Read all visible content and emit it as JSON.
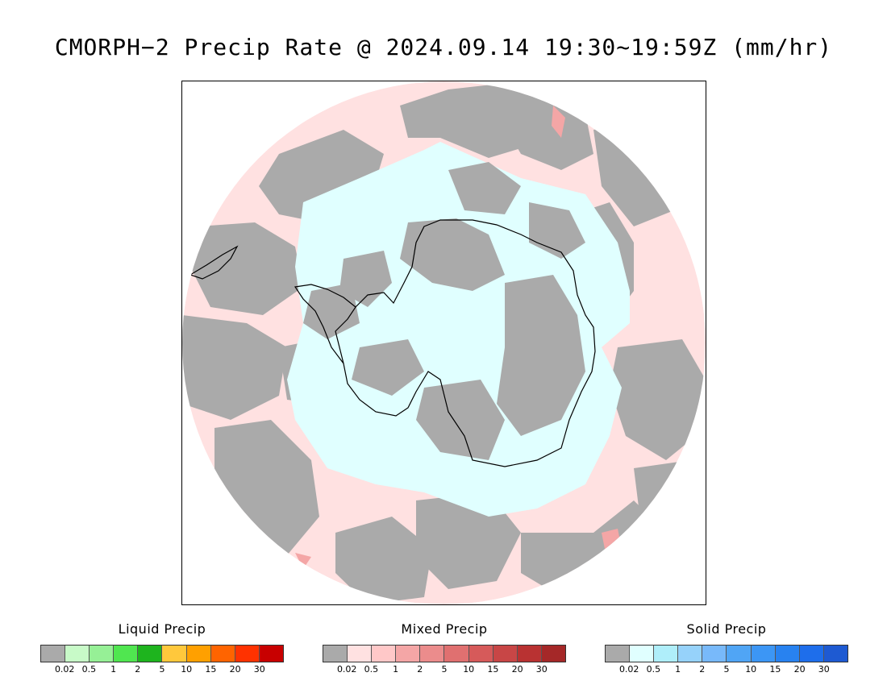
{
  "title": "CMORPH−2 Precip Rate @ 2024.09.14 19:30~19:59Z (mm/hr)",
  "map": {
    "projection": "south-polar-stereographic",
    "colors": {
      "no_precip": "#ffffff",
      "gray_trace": "#aaaaaa",
      "mixed_light": "#ffe1e1",
      "mixed_mid": "#f4a6a6",
      "mixed_strong": "#e07070",
      "solid_light": "#e0ffff",
      "coastline": "#000000"
    }
  },
  "legends": [
    {
      "title": "Liquid Precip",
      "colors": [
        "#aaaaaa",
        "#c8fac8",
        "#96f096",
        "#50e650",
        "#1eb41e",
        "#ffc83c",
        "#ffa000",
        "#ff6400",
        "#ff3200",
        "#c80000"
      ],
      "ticks": [
        "0.02",
        "0.5",
        "1",
        "2",
        "5",
        "10",
        "15",
        "20",
        "30"
      ]
    },
    {
      "title": "Mixed Precip",
      "colors": [
        "#aaaaaa",
        "#ffe1e1",
        "#ffc8c8",
        "#f4a6a6",
        "#eb8c8c",
        "#e07070",
        "#d65a5a",
        "#c84646",
        "#b93232",
        "#a52828"
      ],
      "ticks": [
        "0.02",
        "0.5",
        "1",
        "2",
        "5",
        "10",
        "15",
        "20",
        "30"
      ]
    },
    {
      "title": "Solid Precip",
      "colors": [
        "#aaaaaa",
        "#e0ffff",
        "#afeefa",
        "#96d2fa",
        "#78b9fa",
        "#50a5f5",
        "#3c96f5",
        "#2882f0",
        "#1e6eeb",
        "#1e5ad2"
      ],
      "ticks": [
        "0.02",
        "0.5",
        "1",
        "2",
        "5",
        "10",
        "15",
        "20",
        "30"
      ]
    }
  ]
}
